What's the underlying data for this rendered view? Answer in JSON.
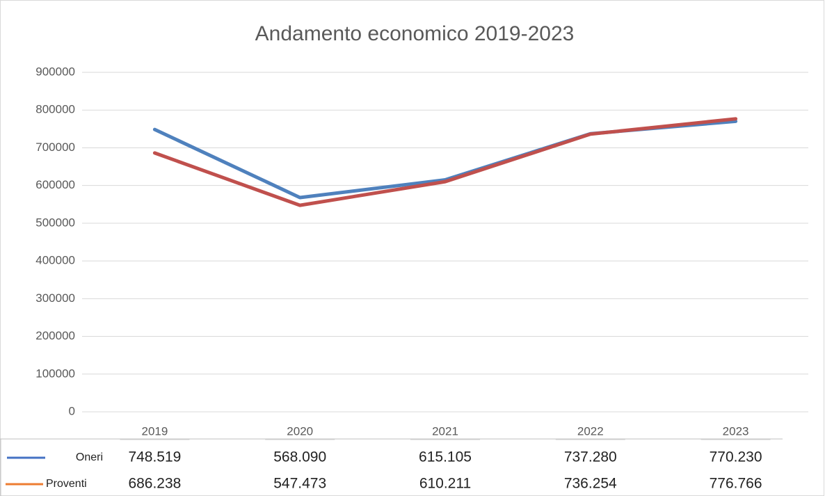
{
  "chart_data": {
    "type": "line",
    "title": "Andamento economico 2019-2023",
    "categories": [
      "2019",
      "2020",
      "2021",
      "2022",
      "2023"
    ],
    "series": [
      {
        "name": "Oneri",
        "color": "#4f81bd",
        "key_color": "#4472c4",
        "values": [
          748519,
          568090,
          615105,
          737280,
          770230
        ],
        "value_labels": [
          "748.519",
          "568.090",
          "615.105",
          "737.280",
          "770.230"
        ]
      },
      {
        "name": "Proventi",
        "color": "#c0504d",
        "key_color": "#ed7d31",
        "values": [
          686238,
          547473,
          610211,
          736254,
          776766
        ],
        "value_labels": [
          "686.238",
          "547.473",
          "610.211",
          "736.254",
          "776.766"
        ]
      }
    ],
    "ylim": [
      0,
      900000
    ],
    "yticks": [
      0,
      100000,
      200000,
      300000,
      400000,
      500000,
      600000,
      700000,
      800000,
      900000
    ],
    "grid": true
  }
}
